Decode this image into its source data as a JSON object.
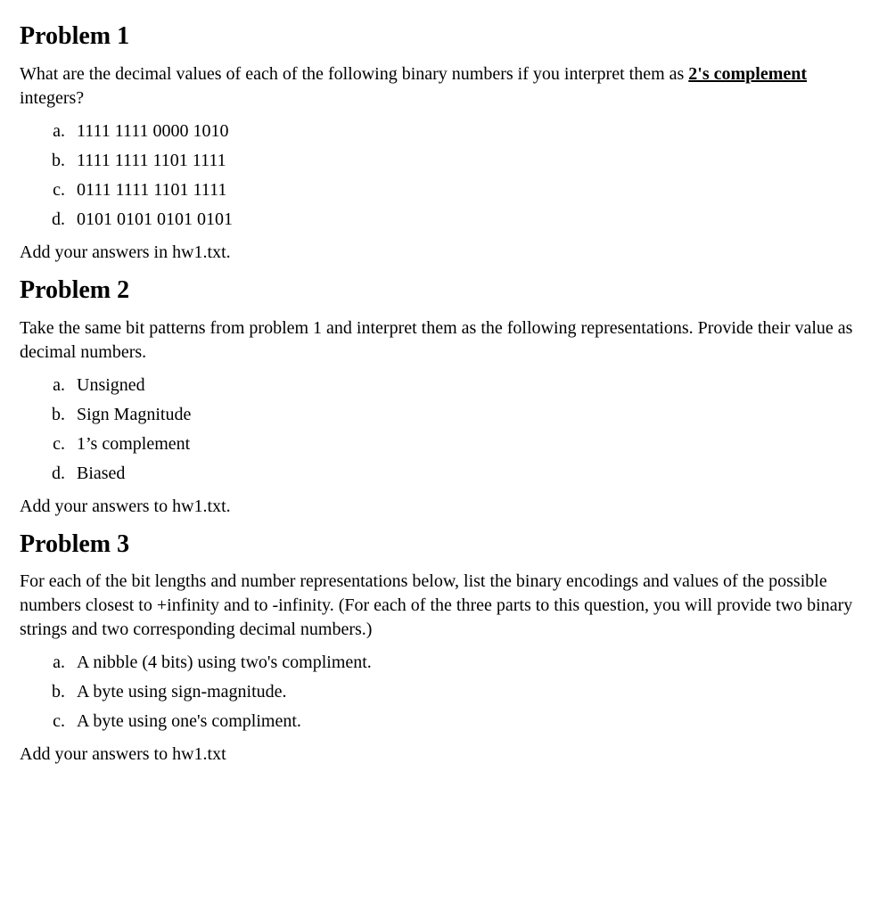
{
  "problems": [
    {
      "heading": "Problem 1",
      "intro_pre": "What are the decimal values of each of the following binary numbers if you interpret them as ",
      "intro_underlined": "2's complement",
      "intro_post": " integers?",
      "items": [
        "1111 1111 0000 1010",
        "1111 1111 1101 1111",
        "0111 1111 1101 1111",
        "0101 0101 0101 0101"
      ],
      "footer": "Add your answers in hw1.txt."
    },
    {
      "heading": "Problem 2",
      "intro": "Take the same bit patterns from problem 1 and interpret them as the following representations. Provide their value as decimal numbers.",
      "items": [
        "Unsigned",
        "Sign Magnitude",
        "1’s complement",
        "Biased"
      ],
      "footer": "Add your answers to hw1.txt."
    },
    {
      "heading": "Problem 3",
      "intro": "For each of the bit lengths and number representations below, list the binary encodings and values of the possible numbers closest to +infinity and to -infinity. (For each of the three parts to this question, you will provide two binary strings and two corresponding decimal numbers.)",
      "items": [
        "A nibble (4 bits) using two's compliment.",
        "A byte using sign-magnitude.",
        "A byte using one's compliment."
      ],
      "footer": "Add your answers to hw1.txt"
    }
  ]
}
